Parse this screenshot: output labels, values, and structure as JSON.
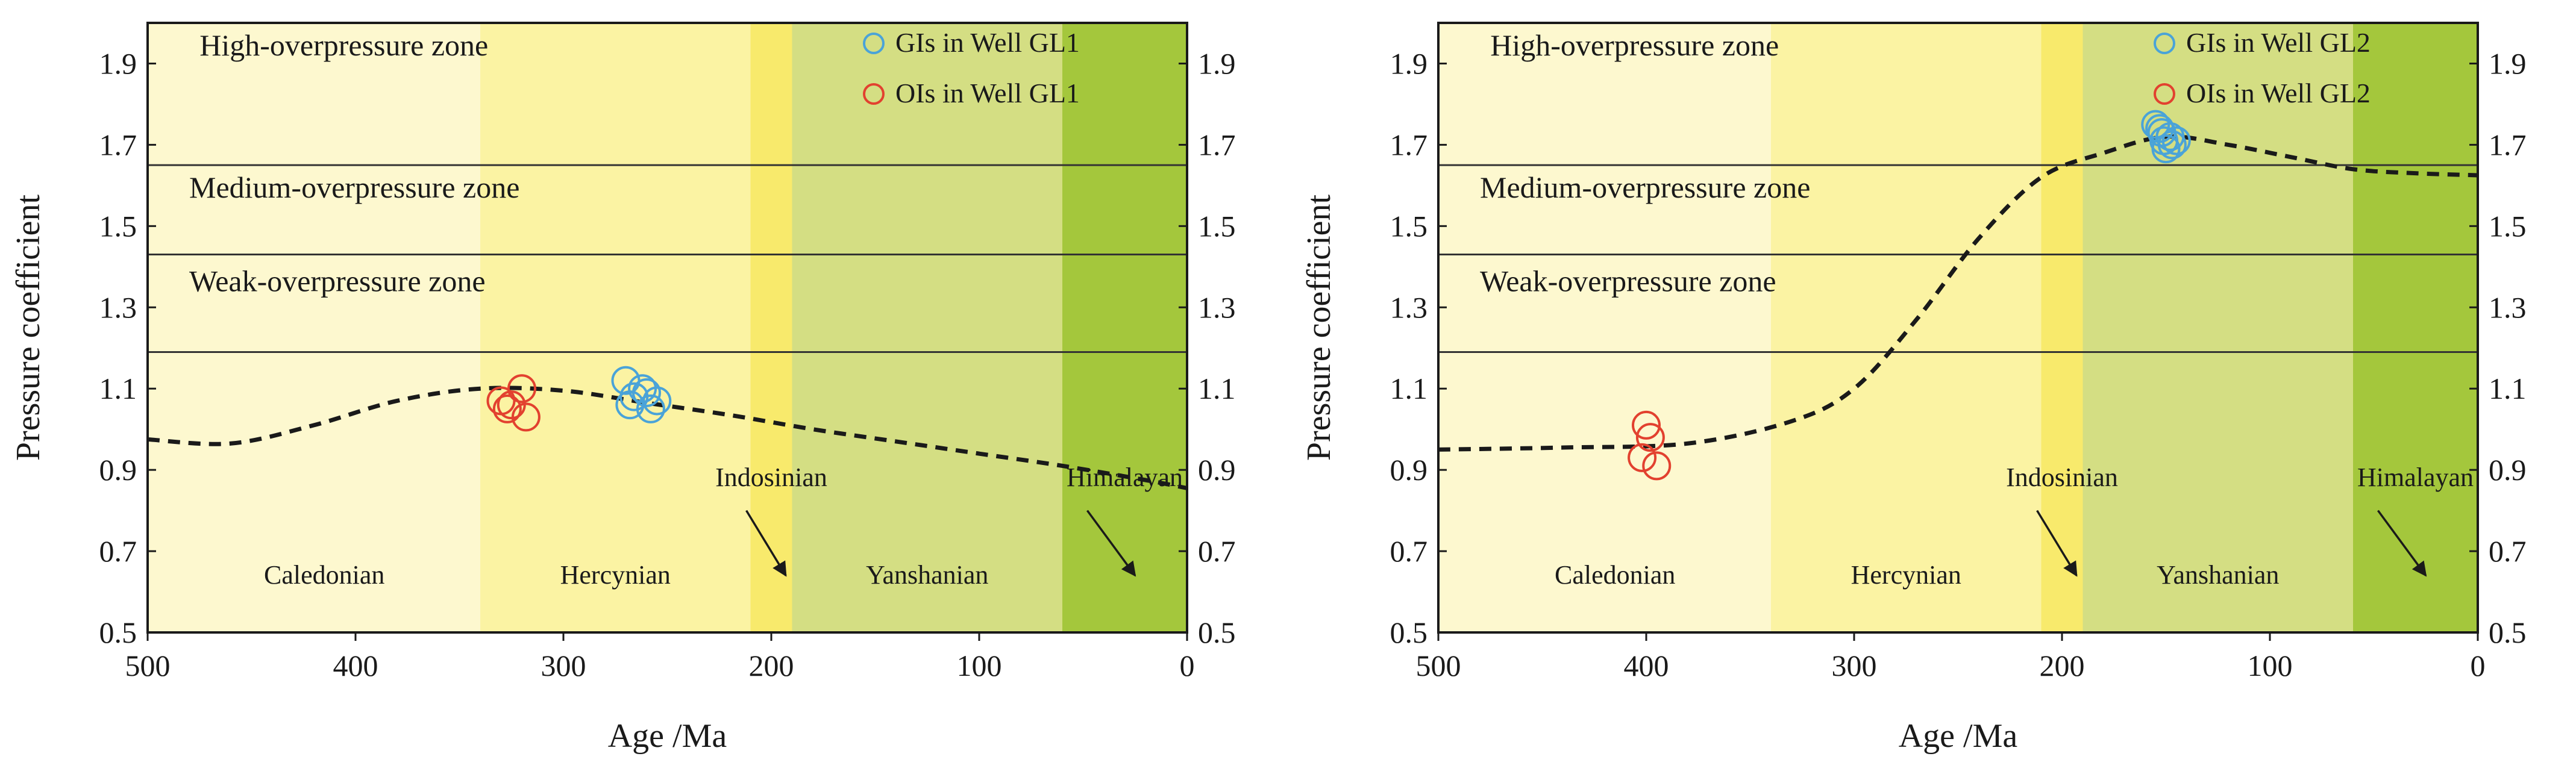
{
  "chart_data": [
    {
      "type": "scatter",
      "title": "",
      "xlabel": "Age /Ma",
      "ylabel": "Pressure coefficient",
      "xlim": [
        500,
        0
      ],
      "ylim": [
        0.5,
        2.0
      ],
      "x_ticks": [
        500,
        400,
        300,
        200,
        100,
        0
      ],
      "y_ticks": [
        0.5,
        0.7,
        0.9,
        1.1,
        1.3,
        1.5,
        1.7,
        1.9
      ],
      "grid": false,
      "legend_position": "top-right",
      "period_bands": [
        {
          "name": "Caledonian",
          "from": 500,
          "to": 340,
          "color": "#fdf8cf",
          "label_at": [
            415,
            0.62
          ]
        },
        {
          "name": "Hercynian",
          "from": 340,
          "to": 210,
          "color": "#fbf3a3",
          "label_at": [
            275,
            0.62
          ]
        },
        {
          "name": "Indosinian",
          "from": 210,
          "to": 190,
          "color": "#f8ea6c",
          "label_at": [
            200,
            0.86
          ]
        },
        {
          "name": "Yanshanian",
          "from": 190,
          "to": 60,
          "color": "#d4de83",
          "label_at": [
            125,
            0.62
          ]
        },
        {
          "name": "Himalayan",
          "from": 60,
          "to": 0,
          "color": "#a4c73c",
          "label_at": [
            30,
            0.86
          ]
        }
      ],
      "pressure_zones": [
        {
          "name": "High-overpressure zone",
          "label_at": [
            475,
            1.92
          ]
        },
        {
          "name": "Medium-overpressure zone",
          "label_at": [
            480,
            1.57
          ]
        },
        {
          "name": "Weak-overpressure zone",
          "label_at": [
            480,
            1.34
          ]
        }
      ],
      "zone_boundaries": [
        1.65,
        1.43,
        1.19
      ],
      "arrows": [
        {
          "from": [
            212,
            0.8
          ],
          "to": [
            193,
            0.64
          ]
        },
        {
          "from": [
            48,
            0.8
          ],
          "to": [
            25,
            0.64
          ]
        }
      ],
      "trend_line": {
        "x": [
          500,
          460,
          420,
          380,
          340,
          300,
          260,
          220,
          180,
          140,
          100,
          60,
          20,
          0
        ],
        "y": [
          0.975,
          0.965,
          1.01,
          1.07,
          1.1,
          1.095,
          1.065,
          1.035,
          1.0,
          0.97,
          0.94,
          0.91,
          0.875,
          0.855
        ]
      },
      "series": [
        {
          "name": "GIs in Well GL1",
          "color": "#4aa3d8",
          "points": [
            [
              270,
              1.12
            ],
            [
              266,
              1.08
            ],
            [
              262,
              1.1
            ],
            [
              258,
              1.05
            ],
            [
              255,
              1.07
            ],
            [
              268,
              1.06
            ],
            [
              260,
              1.09
            ]
          ]
        },
        {
          "name": "OIs in Well GL1",
          "color": "#e2412f",
          "points": [
            [
              330,
              1.07
            ],
            [
              325,
              1.06
            ],
            [
              320,
              1.1
            ],
            [
              318,
              1.03
            ],
            [
              327,
              1.05
            ]
          ]
        }
      ]
    },
    {
      "type": "scatter",
      "title": "",
      "xlabel": "Age /Ma",
      "ylabel": "Pressure coefficient",
      "xlim": [
        500,
        0
      ],
      "ylim": [
        0.5,
        2.0
      ],
      "x_ticks": [
        500,
        400,
        300,
        200,
        100,
        0
      ],
      "y_ticks": [
        0.5,
        0.7,
        0.9,
        1.1,
        1.3,
        1.5,
        1.7,
        1.9
      ],
      "grid": false,
      "legend_position": "top-right",
      "period_bands": [
        {
          "name": "Caledonian",
          "from": 500,
          "to": 340,
          "color": "#fdf8cf",
          "label_at": [
            415,
            0.62
          ]
        },
        {
          "name": "Hercynian",
          "from": 340,
          "to": 210,
          "color": "#fbf3a3",
          "label_at": [
            275,
            0.62
          ]
        },
        {
          "name": "Indosinian",
          "from": 210,
          "to": 190,
          "color": "#f8ea6c",
          "label_at": [
            200,
            0.86
          ]
        },
        {
          "name": "Yanshanian",
          "from": 190,
          "to": 60,
          "color": "#d4de83",
          "label_at": [
            125,
            0.62
          ]
        },
        {
          "name": "Himalayan",
          "from": 60,
          "to": 0,
          "color": "#a4c73c",
          "label_at": [
            30,
            0.86
          ]
        }
      ],
      "pressure_zones": [
        {
          "name": "High-overpressure zone",
          "label_at": [
            475,
            1.92
          ]
        },
        {
          "name": "Medium-overpressure zone",
          "label_at": [
            480,
            1.57
          ]
        },
        {
          "name": "Weak-overpressure zone",
          "label_at": [
            480,
            1.34
          ]
        }
      ],
      "zone_boundaries": [
        1.65,
        1.43,
        1.19
      ],
      "arrows": [
        {
          "from": [
            212,
            0.8
          ],
          "to": [
            193,
            0.64
          ]
        },
        {
          "from": [
            48,
            0.8
          ],
          "to": [
            25,
            0.64
          ]
        }
      ],
      "trend_line": {
        "x": [
          500,
          440,
          380,
          330,
          300,
          270,
          240,
          210,
          180,
          150,
          120,
          90,
          60,
          30,
          0
        ],
        "y": [
          0.95,
          0.955,
          0.965,
          1.02,
          1.1,
          1.27,
          1.47,
          1.62,
          1.68,
          1.72,
          1.7,
          1.67,
          1.64,
          1.63,
          1.625
        ]
      },
      "series": [
        {
          "name": "GIs in Well GL2",
          "color": "#4aa3d8",
          "points": [
            [
              155,
              1.75
            ],
            [
              152,
              1.73
            ],
            [
              148,
              1.72
            ],
            [
              150,
              1.69
            ],
            [
              145,
              1.71
            ],
            [
              153,
              1.74
            ],
            [
              147,
              1.7
            ],
            [
              151,
              1.71
            ]
          ]
        },
        {
          "name": "OIs in Well GL2",
          "color": "#e2412f",
          "points": [
            [
              400,
              1.01
            ],
            [
              398,
              0.98
            ],
            [
              402,
              0.93
            ],
            [
              395,
              0.91
            ]
          ]
        }
      ]
    }
  ]
}
